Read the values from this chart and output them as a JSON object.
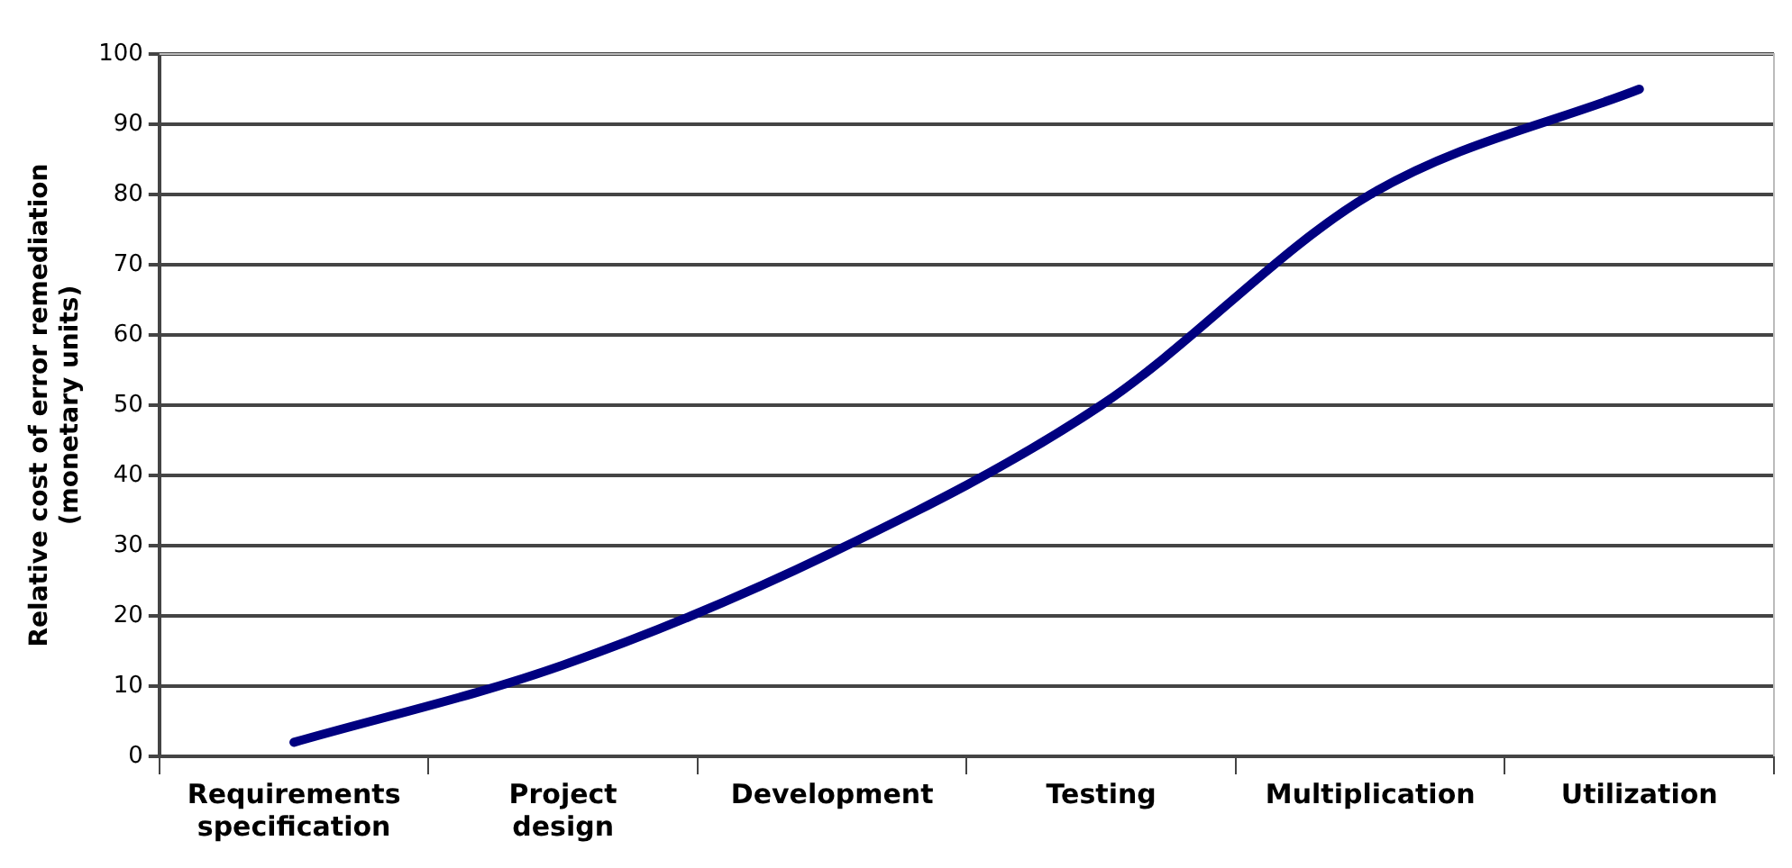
{
  "chart_data": {
    "type": "line",
    "ylabel": "Relative cost of error remediation\n(monetary units)",
    "categories": [
      "Requirements\nspecification",
      "Project\ndesign",
      "Development",
      "Testing",
      "Multiplication",
      "Utilization"
    ],
    "series": [
      {
        "color": "#000080",
        "values": [
          2,
          13,
          29,
          50,
          80,
          95
        ]
      }
    ],
    "ylim": [
      0,
      100
    ],
    "yticks": [
      0,
      10,
      20,
      30,
      40,
      50,
      60,
      70,
      80,
      90,
      100
    ],
    "grid": "y",
    "legend": false,
    "marker": "none",
    "line_style": "solid"
  }
}
